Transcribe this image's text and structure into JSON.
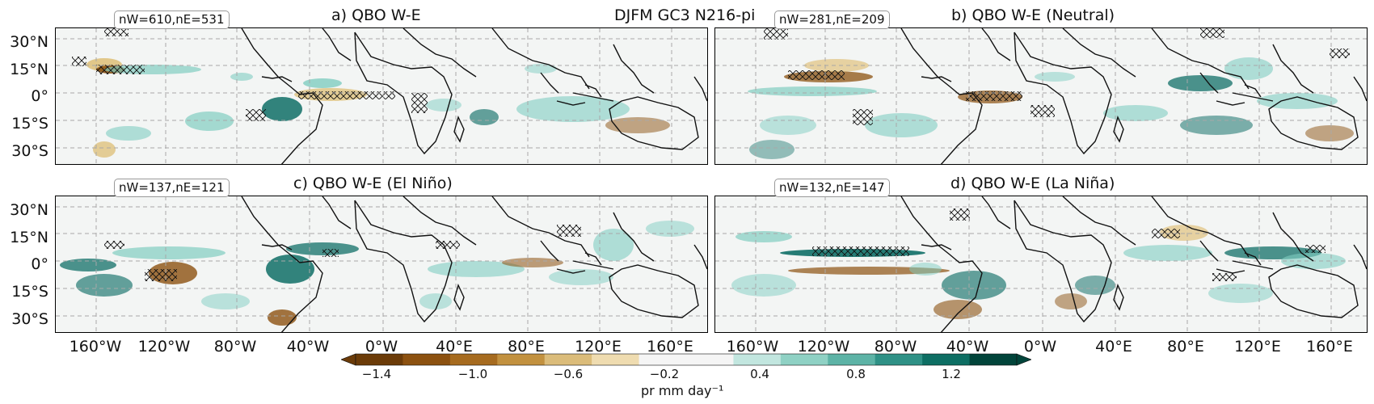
{
  "figure": {
    "suptitle": "DJFM GC3 N216-pi",
    "panels": [
      {
        "title": "a) QBO W-E",
        "counts": "nW=610,nE=531"
      },
      {
        "title": "b) QBO W-E (Neutral)",
        "counts": "nW=281,nE=209"
      },
      {
        "title": "c) QBO W-E (El Niño)",
        "counts": "nW=137,nE=121"
      },
      {
        "title": "d) QBO W-E (La Niña)",
        "counts": "nW=132,nE=147"
      }
    ],
    "lat_labels": [
      "30°N",
      "15°N",
      "0°",
      "15°S",
      "30°S"
    ],
    "lon_labels_left": [
      "160°W",
      "120°W",
      "80°W",
      "40°W",
      "0°W"
    ],
    "lon_labels_right": [
      "160°W",
      "120°W",
      "80°W",
      "40°W",
      "0°W",
      "40°E",
      "80°E",
      "120°E",
      "160°E"
    ],
    "lon_labels_middle": [
      "40°E",
      "80°E",
      "120°E",
      "160°E"
    ]
  },
  "colorbar": {
    "ticks": [
      "−1.4",
      "−1.0",
      "−0.6",
      "−0.2",
      "0.4",
      "0.8",
      "1.2"
    ],
    "label": "pr mm day⁻¹",
    "colors": [
      "#6b3b08",
      "#8c5110",
      "#a66b1f",
      "#c2913f",
      "#dbbc7a",
      "#efdcb0",
      "#f5f5f5",
      "#f5f5f5",
      "#c2e6df",
      "#8fd1c4",
      "#5db3a6",
      "#2f9186",
      "#0d6e63",
      "#01443a"
    ]
  },
  "colors": {
    "brown_dark": "#8c5110",
    "brown_light": "#dfc27d",
    "teal_light": "#80cdc1",
    "teal_dark": "#01665e",
    "ocean": "#f3f5f4"
  }
}
